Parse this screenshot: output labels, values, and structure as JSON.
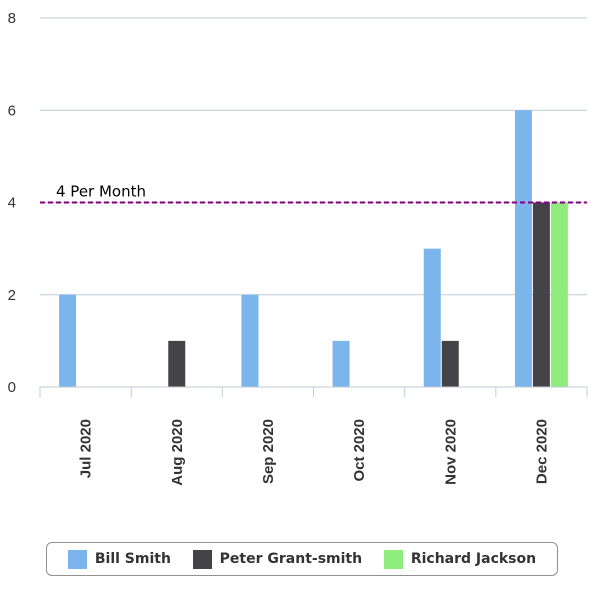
{
  "chart_data": {
    "type": "bar",
    "categories": [
      "Jul 2020",
      "Aug 2020",
      "Sep 2020",
      "Oct 2020",
      "Nov 2020",
      "Dec 2020"
    ],
    "series": [
      {
        "name": "Bill Smith",
        "color": "#7cb5ec",
        "values": [
          2,
          0,
          2,
          1,
          3,
          6
        ]
      },
      {
        "name": "Peter Grant-smith",
        "color": "#434348",
        "values": [
          0,
          1,
          0,
          0,
          1,
          4
        ]
      },
      {
        "name": "Richard Jackson",
        "color": "#90ed7d",
        "values": [
          0,
          0,
          0,
          0,
          0,
          4
        ]
      }
    ],
    "ylim": [
      0,
      8
    ],
    "yticks": [
      0,
      2,
      4,
      6,
      8
    ],
    "grid": true,
    "legend_position": "bottom",
    "reference_line": {
      "value": 4,
      "label": "4 Per Month",
      "color": "#800080",
      "style": "dashed"
    }
  }
}
